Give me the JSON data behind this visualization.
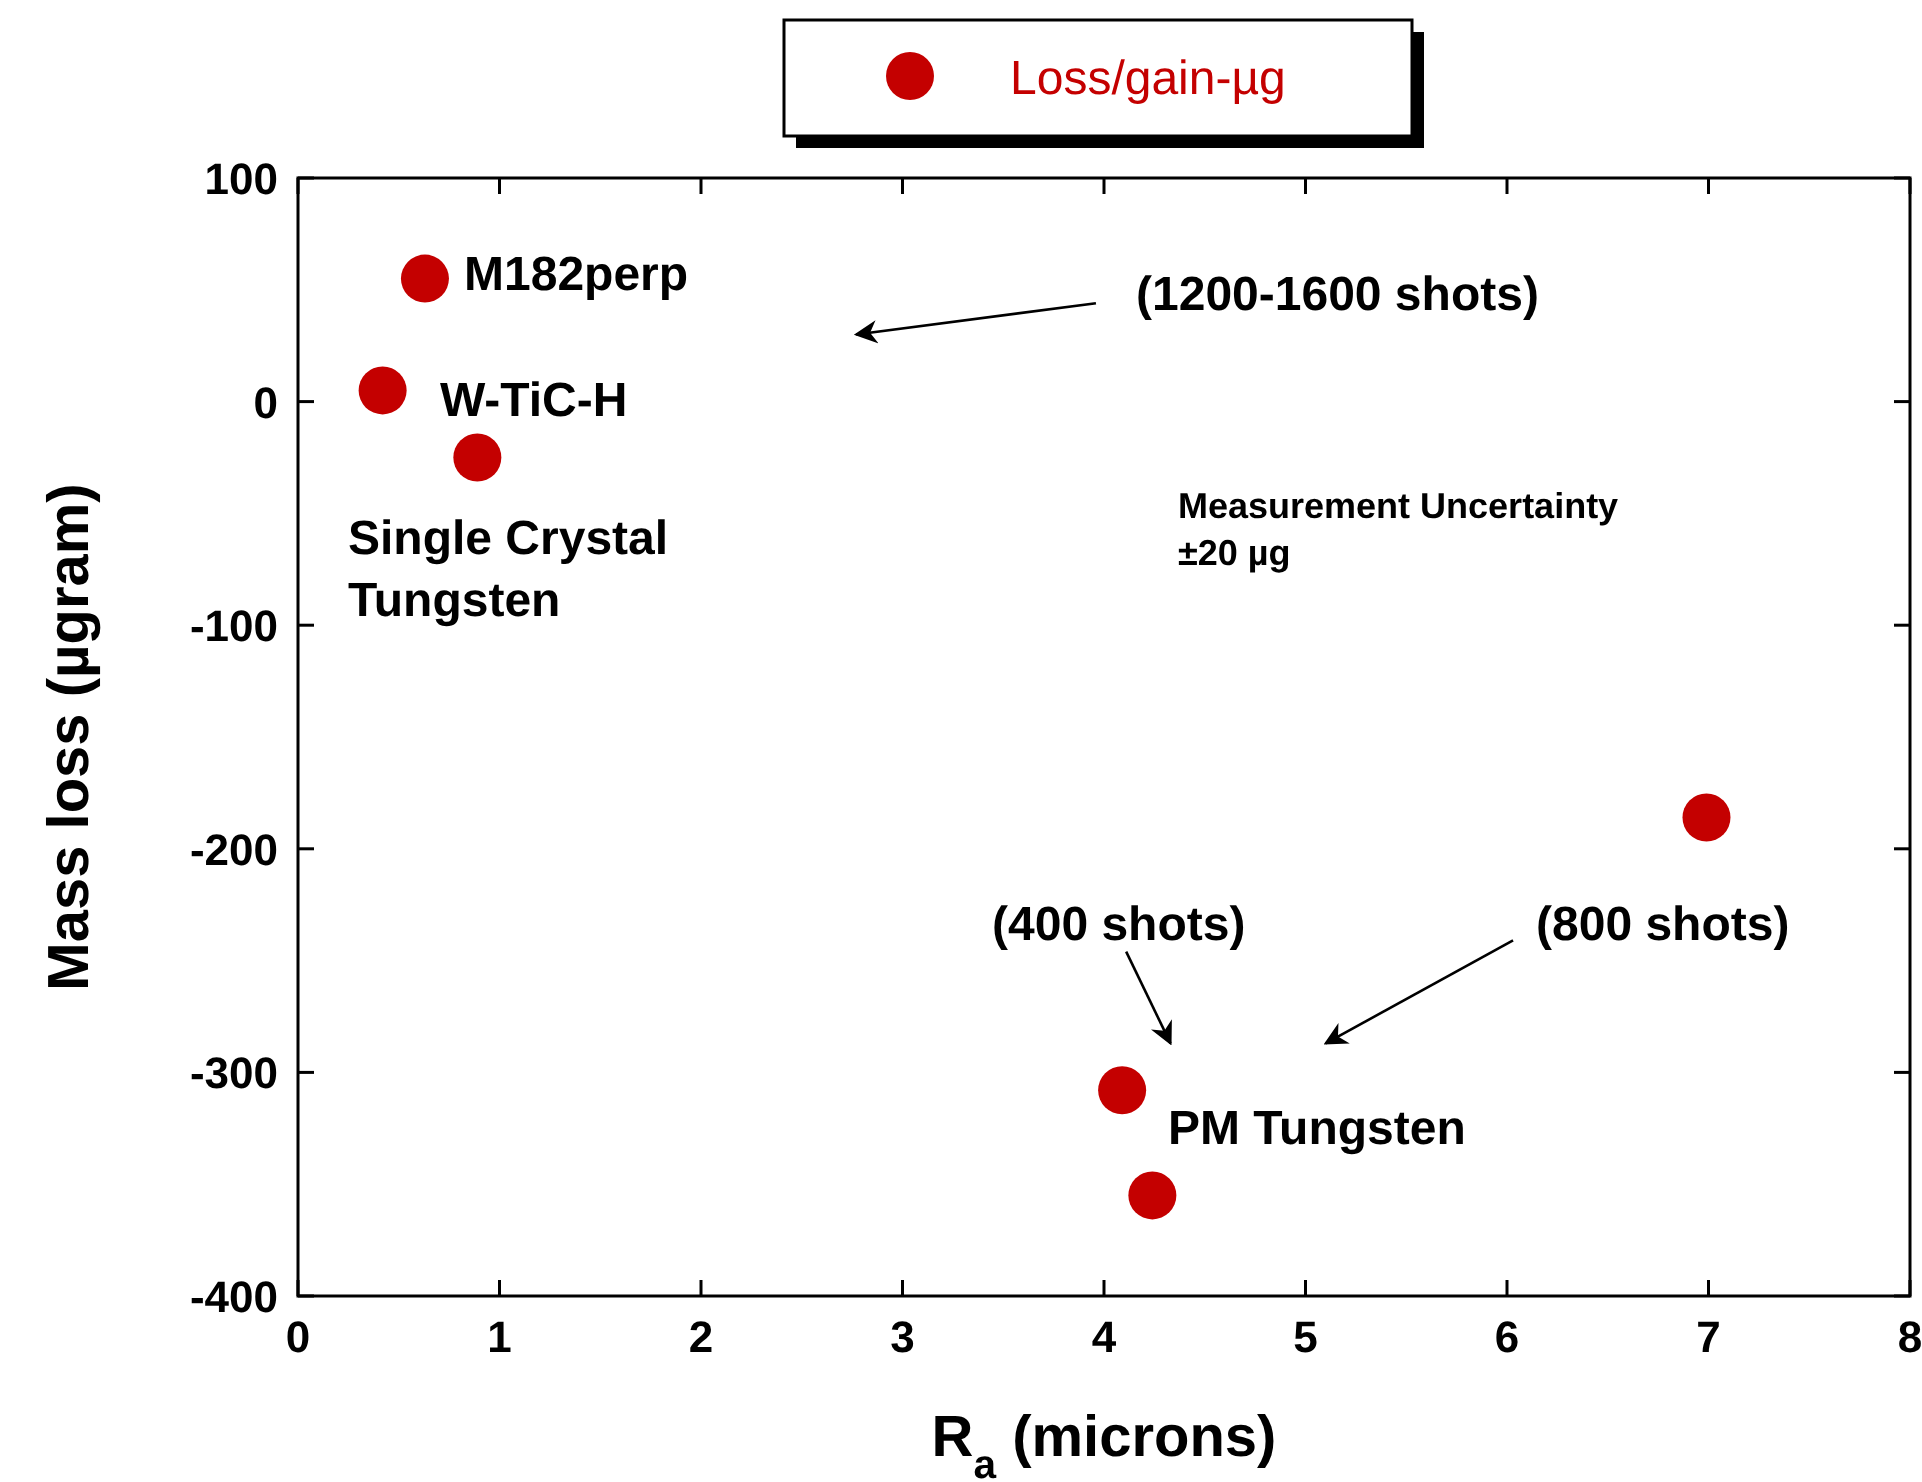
{
  "chart_data": {
    "type": "scatter",
    "xlabel": "R$_{a}$ (microns)",
    "ylabel": "Mass loss (µgram)",
    "xlim": [
      0,
      8
    ],
    "xticks": [
      0,
      1,
      2,
      3,
      4,
      5,
      6,
      7,
      8
    ],
    "ylim": [
      -400,
      100
    ],
    "yticks": [
      -400,
      -300,
      -200,
      -100,
      0,
      100
    ],
    "marker": "circle",
    "legend": "top",
    "grid": false,
    "series": [
      {
        "name": "Loss/gain-µg",
        "color": "#c40000",
        "x": [
          0.63,
          0.42,
          0.89,
          6.99,
          4.09,
          4.24
        ],
        "values": [
          55,
          5,
          -25,
          -186,
          -308,
          -355
        ]
      }
    ],
    "annotations": [
      "M182perp",
      "W-TiC-H",
      "Single Crystal\nTungsten",
      "(1200-1600 shots)",
      "Measurement Uncertainty\n±20 µg",
      "(400 shots)",
      "(800 shots)",
      "PM Tungsten"
    ]
  }
}
